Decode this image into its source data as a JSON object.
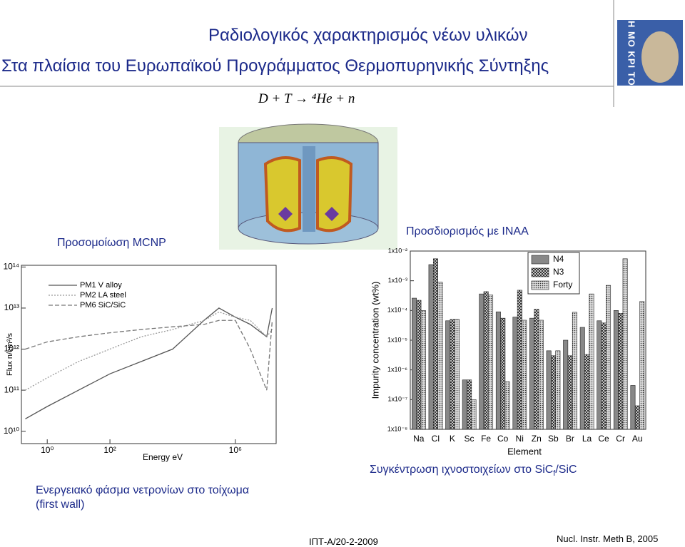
{
  "title": "Ραδιολογικός χαρακτηρισμός νέων υλικών",
  "subtitle": "Στα πλαίσια του Ευρωπαϊκού Προγράμματος Θερμοπυρηνικής Σύντηξης",
  "equation": "D + T → ⁴He + n",
  "logo_text": "ΔΗ ΜΟ ΚΡΙ ΤΟΣ",
  "label_left": "Προσομοίωση MCNP",
  "label_right": "Προσδιορισμός με INAA",
  "caption_left": "Ενεργειακό φάσμα νετρονίων στο τοίχωμα (first wall)",
  "caption_right": [
    "Συγκέντρωση ιχνοστοιχείων στο SiC",
    "f",
    "/SiC"
  ],
  "footer_center": "ΙΠΤ-Α/20-2-2009",
  "footer_right": "Nucl. Instr. Meth B, 2005",
  "chart_data": [
    {
      "type": "line",
      "xlabel": "Energy eV",
      "ylabel": "Flux  n/cm²/s",
      "xscale": "log",
      "yscale": "log",
      "xlim": [
        0.15,
        20000000
      ],
      "ylim": [
        5000000000,
        110000000000000
      ],
      "xticks": [
        {
          "value": 1,
          "label": "10⁰"
        },
        {
          "value": 100,
          "label": "10²"
        },
        {
          "value": 1000000,
          "label": "10⁶"
        }
      ],
      "yticks": [
        {
          "value": 10000000000,
          "label": "10¹⁰"
        },
        {
          "value": 100000000000,
          "label": "10¹¹"
        },
        {
          "value": 1000000000000,
          "label": "10¹²"
        },
        {
          "value": 10000000000000,
          "label": "10¹³"
        },
        {
          "value": 100000000000000,
          "label": "10¹⁴"
        }
      ],
      "x": [
        0.2,
        1,
        10,
        100,
        1000,
        10000,
        100000,
        300000,
        1000000,
        3000000,
        10000000,
        15000000
      ],
      "series": [
        {
          "name": "PM1  V alloy",
          "color": "#555555",
          "dash": "none",
          "values": [
            20000000000,
            40000000000,
            100000000000,
            250000000000,
            500000000000,
            1000000000000,
            5000000000000,
            10000000000000,
            6000000000000,
            4000000000000,
            2000000000000,
            10000000000000
          ]
        },
        {
          "name": "PM2  LA steel",
          "color": "#999999",
          "dash": "2,2",
          "values": [
            100000000000,
            200000000000,
            500000000000,
            1000000000000,
            2000000000000,
            3000000000000,
            5000000000000,
            8000000000000,
            6000000000000,
            5000000000000,
            2000000000000,
            3000000000000
          ]
        },
        {
          "name": "PM6  SiC/SiC",
          "color": "#777777",
          "dash": "6,3",
          "values": [
            1000000000000,
            1500000000000,
            2000000000000,
            2500000000000,
            3000000000000,
            3500000000000,
            4000000000000,
            5000000000000,
            5000000000000,
            1000000000000,
            100000000000,
            5000000000000
          ]
        }
      ]
    },
    {
      "type": "bar",
      "xlabel": "Element",
      "ylabel": "Impurity concentration (wt%)",
      "yscale": "log",
      "ylim": [
        1e-08,
        0.01
      ],
      "yticks": [
        {
          "value": 1e-08,
          "label": "1x10⁻⁸"
        },
        {
          "value": 1e-07,
          "label": "1x10⁻⁷"
        },
        {
          "value": 1e-06,
          "label": "1x10⁻⁶"
        },
        {
          "value": 1e-05,
          "label": "1x10⁻⁵"
        },
        {
          "value": 0.0001,
          "label": "1x10⁻⁴"
        },
        {
          "value": 0.001,
          "label": "1x10⁻³"
        },
        {
          "value": 0.01,
          "label": "1x10⁻²"
        }
      ],
      "categories": [
        "Na",
        "Cl",
        "K",
        "Sc",
        "Fe",
        "Co",
        "Ni",
        "Zn",
        "Sb",
        "Br",
        "La",
        "Ce",
        "Cr",
        "Au"
      ],
      "legend": "top-right",
      "series": [
        {
          "name": "N4",
          "color": "#888888",
          "pattern": "solid",
          "values": [
            0.00026,
            0.0035,
            4.5e-05,
            4.6e-07,
            0.00036,
            9e-05,
            6e-05,
            5.5e-05,
            4.4e-06,
            1e-05,
            2.7e-05,
            4.5e-05,
            0.0001,
            3e-07
          ]
        },
        {
          "name": "N3",
          "color": "#333333",
          "pattern": "crosshatch",
          "values": [
            0.00022,
            0.0055,
            5e-05,
            4.6e-07,
            0.00043,
            5.5e-05,
            0.00048,
            0.00011,
            3e-06,
            3e-06,
            3.3e-06,
            3.8e-05,
            8e-05,
            6.2e-08
          ]
        },
        {
          "name": "Forty",
          "color": "#555555",
          "pattern": "dots",
          "values": [
            0.0001,
            0.0009,
            5e-05,
            1e-07,
            0.00033,
            4e-07,
            4.7e-05,
            4.7e-05,
            4.4e-06,
            8.7e-05,
            0.00036,
            0.0007,
            0.0055,
            0.0002
          ]
        }
      ]
    }
  ]
}
